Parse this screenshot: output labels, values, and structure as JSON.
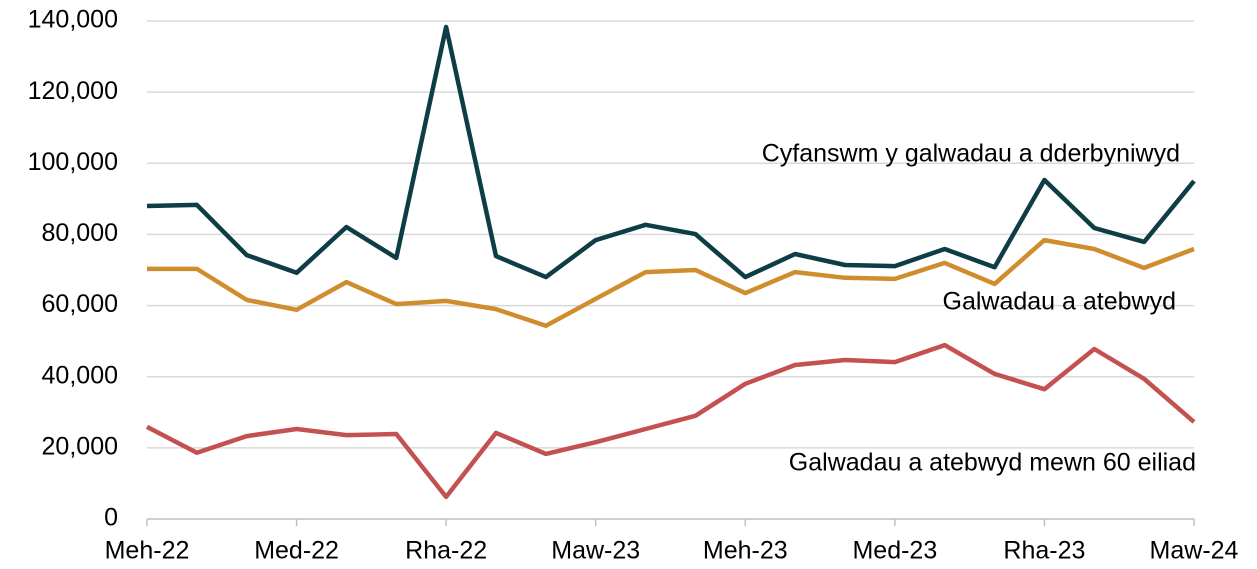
{
  "chart_data": {
    "type": "line",
    "categories": [
      "Meh-22",
      null,
      null,
      "Med-22",
      null,
      null,
      "Rha-22",
      null,
      null,
      "Maw-23",
      null,
      null,
      "Meh-23",
      null,
      null,
      "Med-23",
      null,
      null,
      "Rha-23",
      null,
      null,
      "Maw-24"
    ],
    "series": [
      {
        "name": "Cyfanswm y galwadau a dderbyniwyd",
        "color": "#0e3d45",
        "values": [
          88000,
          88300,
          74200,
          69200,
          82100,
          73400,
          138300,
          73900,
          68000,
          78400,
          82700,
          80100,
          68000,
          74500,
          71400,
          71100,
          75900,
          70800,
          95300,
          81800,
          77900,
          95000
        ]
      },
      {
        "name": "Galwadau a atebwyd",
        "color": "#cf8d2e",
        "values": [
          70300,
          70300,
          61600,
          58800,
          66600,
          60400,
          61300,
          59000,
          54300,
          61900,
          69400,
          70000,
          63500,
          69400,
          67800,
          67500,
          72000,
          66100,
          78400,
          75900,
          70600,
          75900
        ]
      },
      {
        "name": "Galwadau a atebwyd mewn 60 eiliad",
        "color": "#c2514f",
        "values": [
          25900,
          18600,
          23300,
          25300,
          23600,
          23900,
          6200,
          24200,
          18300,
          21600,
          25300,
          29000,
          38000,
          43300,
          44700,
          44100,
          48900,
          40800,
          36500,
          47800,
          39400,
          27300
        ]
      }
    ],
    "ylim": [
      0,
      140000
    ],
    "yticks": [
      0,
      {
        "value": 20000,
        "label": "20,000"
      },
      {
        "value": 40000,
        "label": "40,000"
      },
      {
        "value": 60000,
        "label": "60,000"
      },
      {
        "value": 80000,
        "label": "80,000"
      },
      {
        "value": 100000,
        "label": "100,000"
      },
      {
        "value": 120000,
        "label": "120,000"
      },
      {
        "value": 140000,
        "label": "140,000"
      }
    ],
    "grid": true
  }
}
